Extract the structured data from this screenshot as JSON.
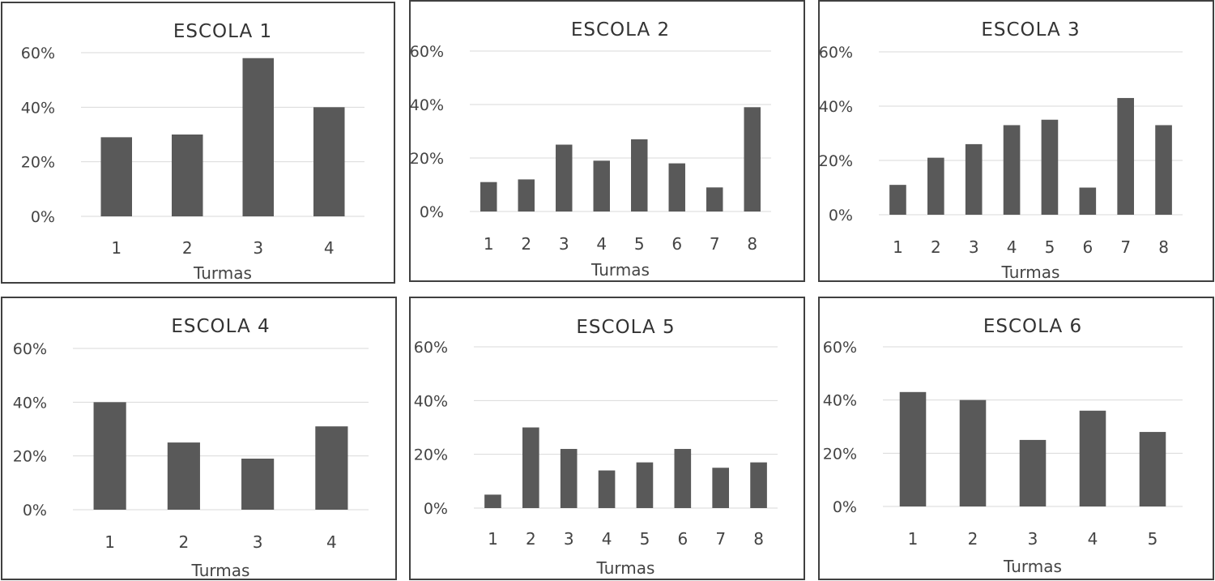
{
  "colors": {
    "bar": "#595959",
    "grid": "#d9d9d9",
    "border": "#404040"
  },
  "chart_data": [
    {
      "type": "bar",
      "title": "ESCOLA 1",
      "xlabel": "Turmas",
      "ylabel": "",
      "categories": [
        "1",
        "2",
        "3",
        "4"
      ],
      "values": [
        29,
        30,
        58,
        40
      ],
      "ylim": [
        0,
        60
      ],
      "yticks": [
        "0%",
        "20%",
        "40%",
        "60%"
      ],
      "grid": true
    },
    {
      "type": "bar",
      "title": "ESCOLA 2",
      "xlabel": "Turmas",
      "ylabel": "",
      "categories": [
        "1",
        "2",
        "3",
        "4",
        "5",
        "6",
        "7",
        "8"
      ],
      "values": [
        11,
        12,
        25,
        19,
        27,
        18,
        9,
        39
      ],
      "ylim": [
        0,
        60
      ],
      "yticks": [
        "0%",
        "20%",
        "40%",
        "60%"
      ],
      "grid": true
    },
    {
      "type": "bar",
      "title": "ESCOLA 3",
      "xlabel": "Turmas",
      "ylabel": "",
      "categories": [
        "1",
        "2",
        "3",
        "4",
        "5",
        "6",
        "7",
        "8"
      ],
      "values": [
        11,
        21,
        26,
        33,
        35,
        10,
        43,
        33
      ],
      "ylim": [
        0,
        60
      ],
      "yticks": [
        "0%",
        "20%",
        "40%",
        "60%"
      ],
      "grid": true
    },
    {
      "type": "bar",
      "title": "ESCOLA 4",
      "xlabel": "Turmas",
      "ylabel": "",
      "categories": [
        "1",
        "2",
        "3",
        "4"
      ],
      "values": [
        40,
        25,
        19,
        31
      ],
      "ylim": [
        0,
        60
      ],
      "yticks": [
        "0%",
        "20%",
        "40%",
        "60%"
      ],
      "grid": true
    },
    {
      "type": "bar",
      "title": "ESCOLA 5",
      "xlabel": "Turmas",
      "ylabel": "",
      "categories": [
        "1",
        "2",
        "3",
        "4",
        "5",
        "6",
        "7",
        "8"
      ],
      "values": [
        5,
        30,
        22,
        14,
        17,
        22,
        15,
        17
      ],
      "ylim": [
        0,
        60
      ],
      "yticks": [
        "0%",
        "20%",
        "40%",
        "60%"
      ],
      "grid": true
    },
    {
      "type": "bar",
      "title": "ESCOLA 6",
      "xlabel": "Turmas",
      "ylabel": "",
      "categories": [
        "1",
        "2",
        "3",
        "4",
        "5"
      ],
      "values": [
        43,
        40,
        25,
        36,
        28
      ],
      "ylim": [
        0,
        60
      ],
      "yticks": [
        "0%",
        "20%",
        "40%",
        "60%"
      ],
      "grid": true
    }
  ]
}
